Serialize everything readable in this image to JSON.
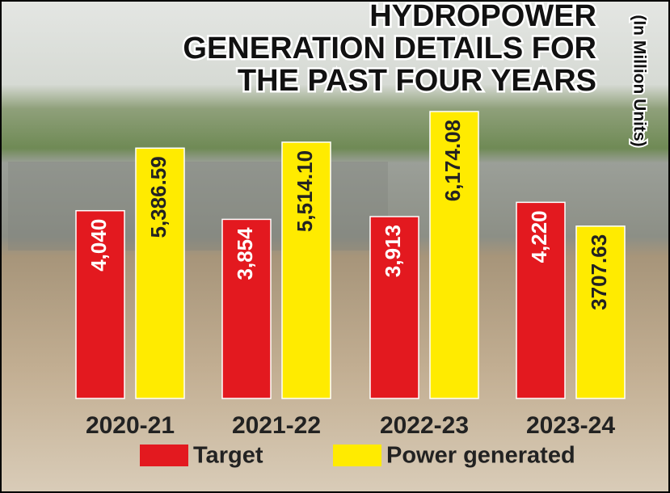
{
  "chart_data": {
    "type": "bar",
    "title": [
      "HYDROPOWER",
      "GENERATION DETAILS FOR",
      "THE PAST FOUR YEARS"
    ],
    "subtitle": "(In Million Units)",
    "categories": [
      "2020-21",
      "2021-22",
      "2022-23",
      "2023-24"
    ],
    "series": [
      {
        "name": "Target",
        "color": "#e3191f",
        "values": [
          4040,
          3854,
          3913,
          4220
        ],
        "value_labels": [
          "4,040",
          "3,854",
          "3,913",
          "4,220"
        ]
      },
      {
        "name": "Power generated",
        "color": "#ffeb00",
        "values": [
          5386.59,
          5514.1,
          6174.08,
          3707.63
        ],
        "value_labels": [
          "5,386.59",
          "5,514.10",
          "6,174.08",
          "3707.63"
        ]
      }
    ]
  }
}
